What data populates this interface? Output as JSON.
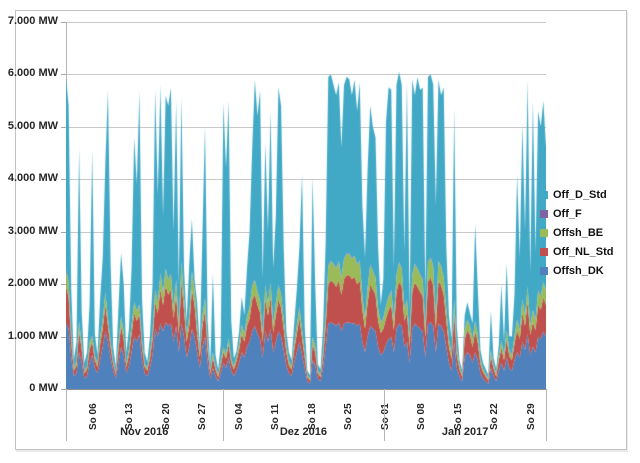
{
  "chart_data": {
    "type": "area",
    "stacked": true,
    "title": "",
    "xlabel": "",
    "ylabel": "",
    "unit": "MW",
    "ylim": [
      0,
      7000
    ],
    "grid": true,
    "legend_position": "right-outside",
    "y_ticks": [
      {
        "value": 0,
        "label": "0 MW"
      },
      {
        "value": 1000,
        "label": "1.000 MW"
      },
      {
        "value": 2000,
        "label": "2.000 MW"
      },
      {
        "value": 3000,
        "label": "3.000 MW"
      },
      {
        "value": 4000,
        "label": "4.000 MW"
      },
      {
        "value": 5000,
        "label": "5.000 MW"
      },
      {
        "value": 6000,
        "label": "6.000 MW"
      },
      {
        "value": 7000,
        "label": "7.000 MW"
      }
    ],
    "total_days": 92,
    "points_per_day": 2,
    "x_range_note": "2016-11-01 to 2017-01-31, values estimated at 12h resolution",
    "x_ticks": [
      {
        "label": "So 06",
        "day": 5.5
      },
      {
        "label": "So 13",
        "day": 12.5
      },
      {
        "label": "So 20",
        "day": 19.5
      },
      {
        "label": "So 27",
        "day": 26.5
      },
      {
        "label": "So 04",
        "day": 33.5
      },
      {
        "label": "So 11",
        "day": 40.5
      },
      {
        "label": "So 18",
        "day": 47.5
      },
      {
        "label": "So 25",
        "day": 54.5
      },
      {
        "label": "So 01",
        "day": 61.5
      },
      {
        "label": "So 08",
        "day": 68.5
      },
      {
        "label": "So 15",
        "day": 75.5
      },
      {
        "label": "So 22",
        "day": 82.5
      },
      {
        "label": "So 29",
        "day": 89.5
      }
    ],
    "month_groups": [
      {
        "label": "Nov 2016",
        "start_day": 0,
        "end_day": 30
      },
      {
        "label": "Dez 2016",
        "start_day": 30,
        "end_day": 61
      },
      {
        "label": "Jan 2017",
        "start_day": 61,
        "end_day": 92
      }
    ],
    "legend": [
      {
        "label": "Off_D_Std",
        "color": "#41a8c6"
      },
      {
        "label": "Off_F",
        "color": "#8064a2"
      },
      {
        "label": "Offsh_BE",
        "color": "#9bbb59"
      },
      {
        "label": "Off_NL_Std",
        "color": "#c0504d"
      },
      {
        "label": "Offsh_DK",
        "color": "#4f81bd"
      }
    ],
    "series": [
      {
        "name": "Offsh_DK",
        "color": "#4f81bd",
        "values": [
          1250,
          1150,
          600,
          250,
          300,
          700,
          500,
          200,
          250,
          500,
          650,
          400,
          300,
          550,
          800,
          1100,
          900,
          600,
          350,
          200,
          500,
          800,
          650,
          300,
          450,
          700,
          1000,
          900,
          1050,
          550,
          300,
          250,
          400,
          650,
          1150,
          1000,
          1250,
          1100,
          1270,
          1200,
          1250,
          900,
          1200,
          700,
          1250,
          1000,
          600,
          800,
          1150,
          1000,
          700,
          400,
          800,
          1000,
          500,
          200,
          400,
          250,
          150,
          300,
          500,
          400,
          600,
          350,
          250,
          350,
          500,
          700,
          600,
          800,
          900,
          1100,
          1200,
          1050,
          950,
          600,
          1100,
          900,
          1150,
          700,
          900,
          1100,
          1000,
          750,
          450,
          300,
          250,
          500,
          700,
          900,
          650,
          400,
          150,
          100,
          550,
          450,
          200,
          150,
          400,
          800,
          1250,
          1270,
          1250,
          1200,
          1270,
          1100,
          1250,
          1270,
          1270,
          1250,
          1260,
          1200,
          1250,
          900,
          700,
          1000,
          1200,
          1150,
          1100,
          800,
          650,
          700,
          850,
          950,
          1000,
          700,
          1150,
          1250,
          1200,
          800,
          900,
          500,
          1150,
          1250,
          1200,
          1150,
          1100,
          600,
          1250,
          1270,
          1200,
          700,
          1250,
          1200,
          1100,
          800,
          500,
          350,
          900,
          400,
          250,
          150,
          600,
          700,
          650,
          500,
          700,
          550,
          300,
          200,
          150,
          100,
          400,
          250,
          150,
          350,
          500,
          350,
          600,
          400,
          350,
          550,
          700,
          600,
          900,
          750,
          1050,
          650,
          800,
          700,
          1000,
          950,
          1100,
          1000
        ]
      },
      {
        "name": "Off_NL_Std",
        "color": "#c0504d",
        "values": [
          700,
          600,
          300,
          100,
          150,
          400,
          250,
          100,
          120,
          260,
          250,
          150,
          120,
          300,
          350,
          500,
          300,
          200,
          120,
          80,
          250,
          400,
          300,
          120,
          200,
          350,
          450,
          400,
          380,
          250,
          120,
          100,
          180,
          300,
          500,
          450,
          650,
          500,
          700,
          600,
          650,
          450,
          600,
          350,
          800,
          500,
          300,
          400,
          750,
          600,
          350,
          200,
          400,
          500,
          250,
          100,
          200,
          120,
          80,
          150,
          200,
          180,
          250,
          150,
          120,
          180,
          250,
          350,
          300,
          400,
          450,
          600,
          600,
          550,
          500,
          300,
          600,
          500,
          600,
          380,
          500,
          600,
          550,
          400,
          250,
          150,
          120,
          250,
          350,
          450,
          320,
          200,
          80,
          60,
          300,
          250,
          100,
          80,
          200,
          400,
          750,
          800,
          780,
          750,
          800,
          700,
          850,
          900,
          900,
          850,
          880,
          800,
          820,
          600,
          450,
          650,
          800,
          750,
          700,
          500,
          420,
          450,
          500,
          550,
          600,
          420,
          700,
          800,
          750,
          500,
          550,
          300,
          700,
          780,
          750,
          700,
          680,
          380,
          800,
          850,
          780,
          450,
          820,
          780,
          700,
          500,
          300,
          220,
          550,
          250,
          130,
          90,
          350,
          420,
          380,
          300,
          400,
          330,
          170,
          120,
          90,
          60,
          230,
          140,
          90,
          200,
          280,
          200,
          350,
          230,
          200,
          320,
          420,
          350,
          550,
          450,
          620,
          380,
          480,
          420,
          600,
          560,
          650,
          600
        ]
      },
      {
        "name": "Offsh_BE",
        "color": "#9bbb59",
        "values": [
          320,
          270,
          140,
          50,
          70,
          180,
          110,
          45,
          55,
          120,
          110,
          70,
          55,
          140,
          160,
          230,
          140,
          90,
          55,
          35,
          110,
          180,
          140,
          55,
          90,
          160,
          200,
          180,
          170,
          110,
          55,
          45,
          80,
          140,
          230,
          200,
          290,
          230,
          320,
          270,
          290,
          200,
          270,
          160,
          360,
          230,
          140,
          180,
          340,
          270,
          160,
          90,
          180,
          230,
          110,
          45,
          90,
          55,
          35,
          70,
          90,
          80,
          110,
          70,
          55,
          80,
          110,
          160,
          140,
          180,
          200,
          270,
          270,
          250,
          230,
          140,
          270,
          230,
          270,
          170,
          230,
          270,
          250,
          180,
          110,
          70,
          55,
          110,
          160,
          200,
          150,
          90,
          35,
          30,
          140,
          110,
          45,
          35,
          90,
          180,
          340,
          360,
          350,
          340,
          360,
          320,
          380,
          400,
          400,
          380,
          400,
          360,
          370,
          270,
          200,
          290,
          360,
          340,
          320,
          230,
          190,
          200,
          230,
          250,
          270,
          190,
          320,
          360,
          340,
          230,
          250,
          140,
          320,
          350,
          340,
          320,
          310,
          170,
          360,
          380,
          350,
          200,
          370,
          350,
          320,
          230,
          140,
          100,
          250,
          110,
          60,
          40,
          160,
          190,
          170,
          140,
          180,
          150,
          80,
          55,
          40,
          30,
          100,
          65,
          40,
          90,
          130,
          90,
          160,
          100,
          90,
          140,
          190,
          160,
          250,
          200,
          280,
          170,
          220,
          190,
          270,
          250,
          290,
          270
        ]
      },
      {
        "name": "Off_F",
        "color": "#8064a2",
        "values": [
          12,
          15,
          9,
          14,
          18,
          11,
          8,
          13,
          12,
          15,
          9,
          14,
          18,
          11,
          8,
          13,
          12,
          15,
          9,
          14,
          18,
          11,
          8,
          13,
          12,
          15,
          9,
          14,
          18,
          11,
          8,
          13,
          12,
          15,
          9,
          14,
          18,
          11,
          8,
          13,
          12,
          15,
          9,
          14,
          18,
          11,
          8,
          13,
          12,
          15,
          9,
          14,
          18,
          11,
          8,
          13,
          12,
          15,
          9,
          14,
          18,
          11,
          8,
          13,
          12,
          15,
          9,
          14,
          18,
          11,
          8,
          13,
          12,
          15,
          9,
          14,
          18,
          11,
          8,
          13,
          12,
          15,
          9,
          14,
          18,
          11,
          8,
          13,
          12,
          15,
          9,
          14,
          18,
          11,
          8,
          13,
          12,
          15,
          9,
          14,
          18,
          11,
          8,
          13,
          12,
          15,
          9,
          14,
          18,
          11,
          8,
          13,
          12,
          15,
          9,
          14,
          18,
          11,
          8,
          13,
          12,
          15,
          9,
          14,
          18,
          11,
          8,
          13,
          12,
          15,
          9,
          14,
          18,
          11,
          8,
          13,
          12,
          15,
          9,
          14,
          18,
          11,
          8,
          13,
          12,
          15,
          9,
          14,
          18,
          11,
          8,
          13,
          12,
          15,
          9,
          14,
          18,
          11,
          8,
          13,
          12,
          15,
          9,
          14,
          18,
          11,
          8,
          13,
          12,
          15,
          9,
          14,
          18,
          11,
          8,
          13,
          12,
          15,
          9,
          14,
          18,
          11,
          8,
          13
        ]
      },
      {
        "name": "Off_D_Std",
        "color": "#41a8c6",
        "values": [
          3650,
          3370,
          850,
          140,
          370,
          3310,
          580,
          140,
          260,
          710,
          3530,
          420,
          160,
          700,
          1180,
          2460,
          4350,
          1500,
          260,
          100,
          680,
          1210,
          900,
          210,
          400,
          1080,
          3140,
          2410,
          4060,
          780,
          210,
          110,
          330,
          900,
          3830,
          2040,
          3600,
          1460,
          3300,
          3320,
          3550,
          1440,
          3420,
          780,
          3150,
          560,
          250,
          1010,
          1000,
          220,
          430,
          120,
          1510,
          3290,
          430,
          110,
          1500,
          210,
          100,
          320,
          4650,
          3530,
          4530,
          720,
          140,
          100,
          230,
          530,
          350,
          910,
          1440,
          2620,
          3820,
          3340,
          4010,
          1050,
          2720,
          1360,
          3270,
          1040,
          1660,
          3770,
          3590,
          1360,
          280,
          170,
          120,
          380,
          680,
          1140,
          2970,
          500,
          70,
          60,
          3050,
          1180,
          120,
          90,
          450,
          1410,
          3600,
          3560,
          3410,
          3300,
          3410,
          2470,
          3310,
          3370,
          3320,
          3110,
          3350,
          2930,
          3400,
          1720,
          1140,
          2250,
          3030,
          2750,
          2670,
          1160,
          330,
          740,
          3510,
          3990,
          3820,
          980,
          3620,
          3630,
          3500,
          1060,
          4140,
          550,
          3720,
          3210,
          3650,
          3520,
          3650,
          640,
          3530,
          3490,
          3460,
          2140,
          3450,
          3260,
          3620,
          1160,
          450,
          270,
          3640,
          430,
          110,
          70,
          280,
          330,
          240,
          300,
          1860,
          860,
          190,
          110,
          90,
          60,
          760,
          130,
          90,
          200,
          1080,
          250,
          1280,
          260,
          350,
          780,
          2780,
          1380,
          3360,
          1590,
          3940,
          990,
          3990,
          1280,
          3420,
          3230,
          3450,
          2720
        ]
      }
    ]
  }
}
